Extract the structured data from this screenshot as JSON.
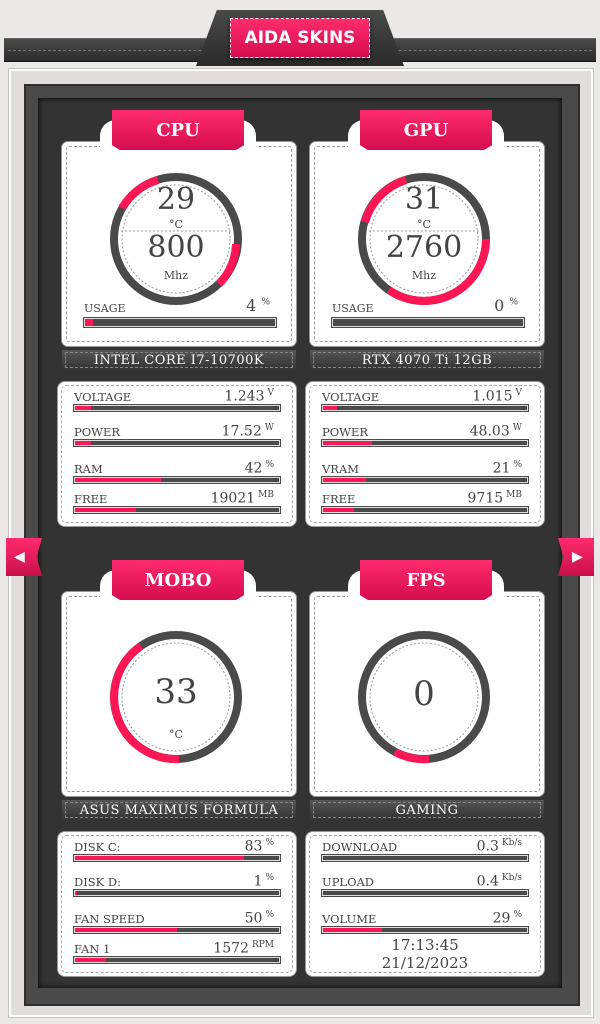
{
  "header": {
    "title": "AIDA SKINS"
  },
  "cpu": {
    "title": "CPU",
    "temp": "29",
    "temp_unit": "°C",
    "clock": "800",
    "clock_unit": "Mhz",
    "usage_label": "USAGE",
    "usage": "4",
    "usage_unit": "%",
    "usage_fraction": 0.04,
    "name": "INTEL CORE I7-10700K",
    "stats": [
      {
        "label": "VOLTAGE",
        "value": "1.243",
        "unit": "V",
        "fraction": 0.08
      },
      {
        "label": "POWER",
        "value": "17.52",
        "unit": "W",
        "fraction": 0.08
      },
      {
        "label": "RAM",
        "value": "42",
        "unit": "%",
        "fraction": 0.42
      },
      {
        "label": "FREE",
        "value": "19021",
        "unit": "MB",
        "fraction": 0.3
      }
    ]
  },
  "gpu": {
    "title": "GPU",
    "temp": "31",
    "temp_unit": "°C",
    "clock": "2760",
    "clock_unit": "Mhz",
    "usage_label": "USAGE",
    "usage": "0",
    "usage_unit": "%",
    "usage_fraction": 0.0,
    "name": "RTX 4070 Ti 12GB",
    "stats": [
      {
        "label": "VOLTAGE",
        "value": "1.015",
        "unit": "V",
        "fraction": 0.07
      },
      {
        "label": "POWER",
        "value": "48.03",
        "unit": "W",
        "fraction": 0.24
      },
      {
        "label": "VRAM",
        "value": "21",
        "unit": "%",
        "fraction": 0.21
      },
      {
        "label": "FREE",
        "value": "9715",
        "unit": "MB",
        "fraction": 0.15
      }
    ]
  },
  "mobo": {
    "title": "MOBO",
    "temp": "33",
    "temp_unit": "°C",
    "name": "ASUS MAXIMUS FORMULA",
    "stats": [
      {
        "label": "DISK C:",
        "value": "83",
        "unit": "%",
        "fraction": 0.83
      },
      {
        "label": "DISK D:",
        "value": "1",
        "unit": "%",
        "fraction": 0.01
      },
      {
        "label": "FAN SPEED",
        "value": "50",
        "unit": "%",
        "fraction": 0.5
      },
      {
        "label": "FAN 1",
        "value": "1572",
        "unit": "RPM",
        "fraction": 0.15
      }
    ]
  },
  "fps": {
    "title": "FPS",
    "value": "0",
    "name": "GAMING",
    "stats": [
      {
        "label": "DOWNLOAD",
        "value": "0.3",
        "unit": "Kb/s",
        "fraction": 0.0
      },
      {
        "label": "UPLOAD",
        "value": "0.4",
        "unit": "Kb/s",
        "fraction": 0.0
      },
      {
        "label": "VOLUME",
        "value": "29",
        "unit": "%",
        "fraction": 0.29
      }
    ],
    "time": "17:13:45",
    "date": "21/12/2023"
  },
  "nav": {
    "prev_icon": "triangle-left-icon",
    "next_icon": "triangle-right-icon"
  },
  "colors": {
    "accent": "#ff1654",
    "track": "#4a4a4a",
    "panel": "#333333"
  }
}
